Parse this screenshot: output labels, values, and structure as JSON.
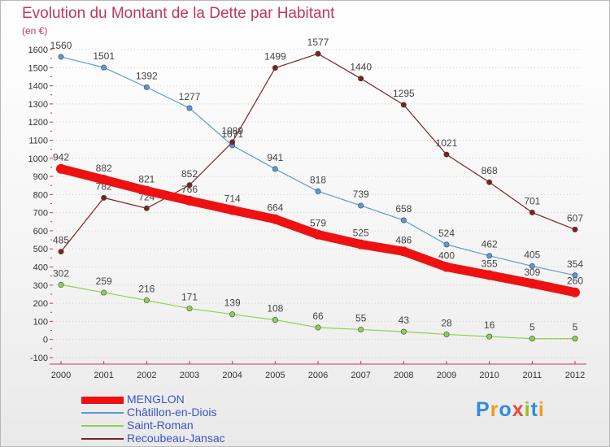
{
  "chart_data": {
    "type": "line",
    "title": "Evolution du Montant de la Dette par Habitant",
    "unit_label": "(en €)",
    "x": [
      "2000",
      "2001",
      "2002",
      "2003",
      "2004",
      "2005",
      "2006",
      "2007",
      "2008",
      "2009",
      "2010",
      "2011",
      "2012"
    ],
    "ylim": [
      -100,
      1600
    ],
    "yticks": [
      -100,
      0,
      100,
      200,
      300,
      400,
      500,
      600,
      700,
      800,
      900,
      1000,
      1100,
      1200,
      1300,
      1400,
      1500,
      1600
    ],
    "grid": "horizontal dotted",
    "legend_position": "bottom-left",
    "series": [
      {
        "name": "MENGLON",
        "color": "#ee1111",
        "values": [
          942,
          882,
          821,
          766,
          714,
          664,
          579,
          525,
          486,
          400,
          355,
          309,
          260
        ],
        "labels": [
          "942",
          "882",
          "821",
          "766",
          "714",
          "664",
          "579",
          "525",
          "486",
          "400",
          "355",
          "309",
          "260"
        ]
      },
      {
        "name": "Châtillon-en-Diois",
        "color": "#5b9bd5",
        "values": [
          1560,
          1501,
          1392,
          1277,
          1071,
          941,
          818,
          739,
          658,
          524,
          462,
          405,
          354
        ],
        "labels": [
          "1560",
          "1501",
          "1392",
          "1277",
          "1071",
          "941",
          "818",
          "739",
          "658",
          "524",
          "462",
          "405",
          "354"
        ]
      },
      {
        "name": "Saint-Roman",
        "color": "#8fd14f",
        "values": [
          302,
          259,
          216,
          171,
          139,
          108,
          66,
          55,
          43,
          28,
          16,
          5,
          5
        ],
        "labels": [
          "302",
          "259",
          "216",
          "171",
          "139",
          "108",
          "66",
          "55",
          "43",
          "28",
          "16",
          "5",
          "5"
        ]
      },
      {
        "name": "Recoubeau-Jansac",
        "color": "#7b2222",
        "values": [
          485,
          782,
          724,
          852,
          1089,
          1499,
          1577,
          1440,
          1295,
          1021,
          868,
          701,
          607
        ],
        "labels": [
          "485",
          "782",
          "724",
          "852",
          "1089",
          "1499",
          "1577",
          "1440",
          "1295",
          "1021",
          "868",
          "701",
          "607"
        ]
      }
    ]
  },
  "logo": {
    "text": "Proxiti",
    "letter_colors": [
      "#2f8be0",
      "#f39c12",
      "#2f8be0",
      "#e74c3c",
      "#8fc31f",
      "#2f8be0",
      "#f39c12"
    ]
  }
}
